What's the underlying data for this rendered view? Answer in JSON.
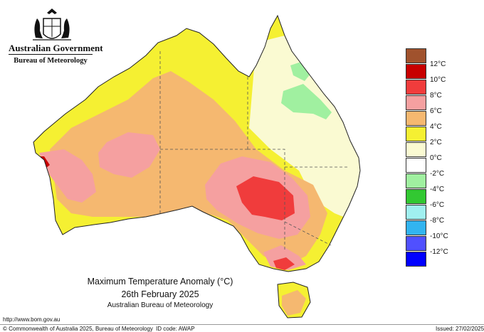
{
  "header": {
    "org_name": "Australian Government",
    "agency": "Bureau of Meteorology"
  },
  "title": {
    "line1": "Maximum Temperature Anomaly (°C)",
    "line2": "26th February 2025",
    "line3": "Australian Bureau of Meteorology"
  },
  "legend": {
    "items": [
      {
        "label": "12°C",
        "color": "#a0522d"
      },
      {
        "label": "10°C",
        "color": "#c80000"
      },
      {
        "label": "8°C",
        "color": "#f03c3c"
      },
      {
        "label": "6°C",
        "color": "#f5a0a0"
      },
      {
        "label": "4°C",
        "color": "#f5b870"
      },
      {
        "label": "2°C",
        "color": "#f5f032"
      },
      {
        "label": "0°C",
        "color": "#fafad2"
      },
      {
        "label": "-2°C",
        "color": "#ffffff"
      },
      {
        "label": "-4°C",
        "color": "#a0f0a0"
      },
      {
        "label": "-6°C",
        "color": "#32c832"
      },
      {
        "label": "-8°C",
        "color": "#a0f0f0"
      },
      {
        "label": "-10°C",
        "color": "#32b4f0"
      },
      {
        "label": "-12°C",
        "color": "#5050ff"
      },
      {
        "label": "",
        "color": "#0000ff"
      }
    ]
  },
  "map_colors": {
    "pale_yellow": "#fafad2",
    "yellow": "#f5f032",
    "orange": "#f5b870",
    "pink": "#f5a0a0",
    "red": "#f03c3c",
    "dark_red": "#c80000",
    "light_green": "#a0f0a0"
  },
  "footer": {
    "url": "http://www.bom.gov.au",
    "copyright": "© Commonwealth of Australia 2025, Bureau of Meteorology",
    "id_code": "ID code: AWAP",
    "issued": "Issued: 27/02/2025"
  }
}
